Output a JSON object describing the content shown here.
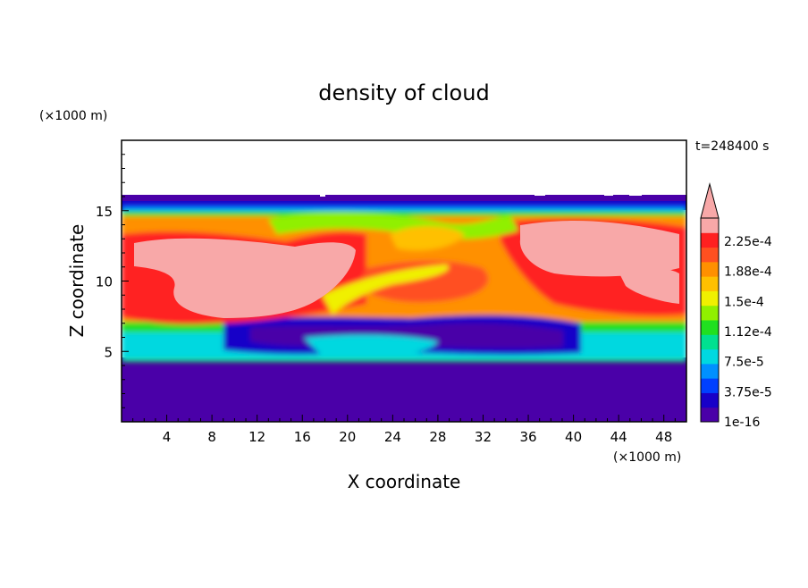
{
  "chart_data": {
    "type": "heatmap",
    "title": "density of cloud",
    "xlabel": "X coordinate",
    "ylabel": "Z coordinate",
    "x_unit": "(×1000 m)",
    "y_unit": "(×1000 m)",
    "time_label": "t=248400 s",
    "xlim": [
      0,
      50
    ],
    "ylim": [
      0,
      20
    ],
    "x_ticks": [
      4,
      8,
      12,
      16,
      20,
      24,
      28,
      32,
      36,
      40,
      44,
      48
    ],
    "y_ticks": [
      5,
      10,
      15
    ],
    "colorbar": {
      "labels": [
        "2.25e-4",
        "1.88e-4",
        "1.5e-4",
        "1.12e-4",
        "7.5e-5",
        "3.75e-5",
        "1e-16"
      ],
      "colors": [
        "#4a00a8",
        "#1800c8",
        "#0040ff",
        "#0090ff",
        "#00d8e0",
        "#00e090",
        "#20e020",
        "#90f000",
        "#f0f000",
        "#ffc000",
        "#ff9000",
        "#ff5020",
        "#ff2020",
        "#f8a8a8"
      ]
    }
  }
}
